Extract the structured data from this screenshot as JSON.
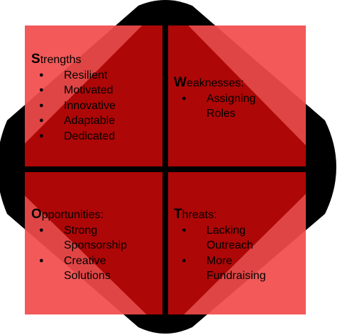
{
  "colors": {
    "background": "#ffffff",
    "backdrop_shape": "#000000",
    "square_fill": "#f24b4b",
    "diamond_fill": "#a80000",
    "divider": "#000000",
    "text": "#000000"
  },
  "quadrants": {
    "strengths": {
      "initial": "S",
      "rest": "trengths",
      "items": [
        "Resilient",
        "Motivated",
        "Innovative",
        "Adaptable",
        "Dedicated"
      ]
    },
    "weaknesses": {
      "initial": "W",
      "rest": "eaknesses:",
      "items": [
        "Assigning\nRoles"
      ]
    },
    "opportunities": {
      "initial": "O",
      "rest": "pportunities:",
      "items": [
        "Strong\nSponsorship",
        "Creative\nSolutions"
      ]
    },
    "threats": {
      "initial": "T",
      "rest": "hreats:",
      "items": [
        "Lacking\nOutreach",
        "More\nFundraising"
      ]
    }
  }
}
